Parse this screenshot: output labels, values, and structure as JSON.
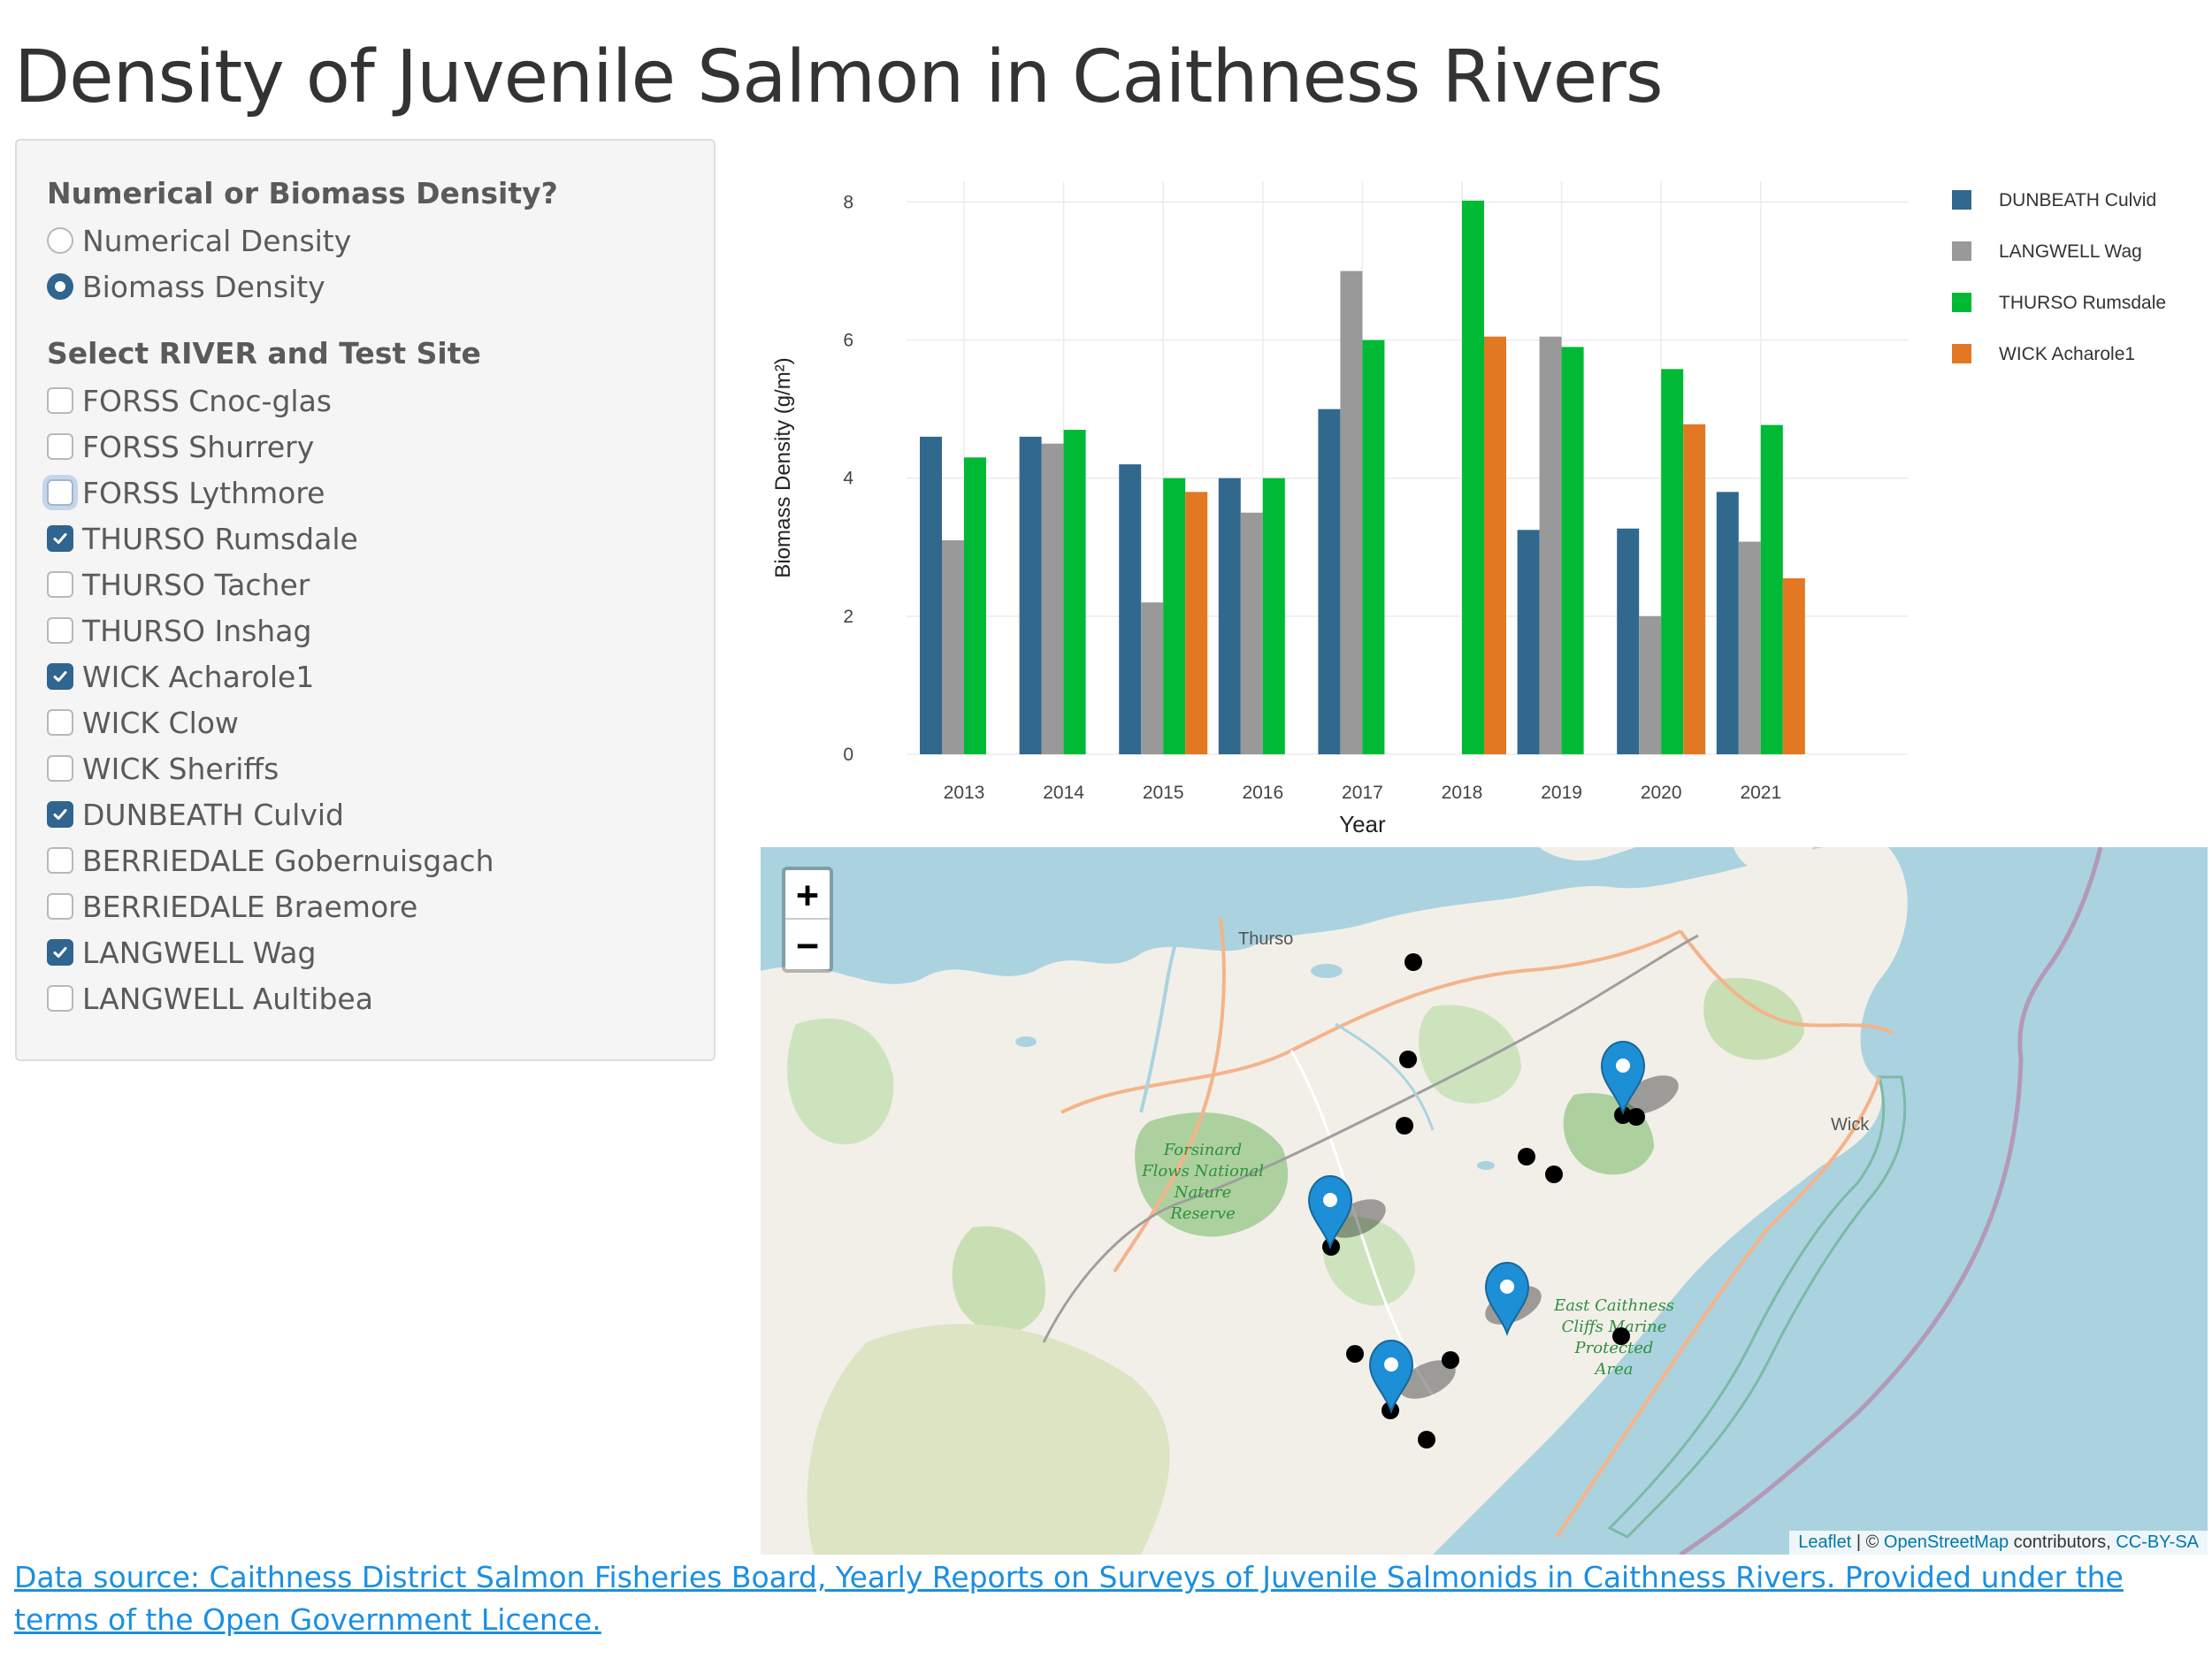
{
  "title": "Density of Juvenile Salmon in Caithness Rivers",
  "controls": {
    "density_label": "Numerical or Biomass Density?",
    "density_options": [
      {
        "label": "Numerical Density",
        "selected": false
      },
      {
        "label": "Biomass Density",
        "selected": true
      }
    ],
    "site_label": "Select RIVER and Test Site",
    "sites": [
      {
        "label": "FORSS Cnoc-glas",
        "checked": false
      },
      {
        "label": "FORSS Shurrery",
        "checked": false
      },
      {
        "label": "FORSS Lythmore",
        "checked": false,
        "focused": true
      },
      {
        "label": "THURSO Rumsdale",
        "checked": true
      },
      {
        "label": "THURSO Tacher",
        "checked": false
      },
      {
        "label": "THURSO Inshag",
        "checked": false
      },
      {
        "label": "WICK Acharole1",
        "checked": true
      },
      {
        "label": "WICK Clow",
        "checked": false
      },
      {
        "label": "WICK Sheriffs",
        "checked": false
      },
      {
        "label": "DUNBEATH Culvid",
        "checked": true
      },
      {
        "label": "BERRIEDALE Gobernuisgach",
        "checked": false
      },
      {
        "label": "BERRIEDALE Braemore",
        "checked": false
      },
      {
        "label": "LANGWELL Wag",
        "checked": true
      },
      {
        "label": "LANGWELL Aultibea",
        "checked": false
      }
    ]
  },
  "chart_data": {
    "type": "bar",
    "xlabel": "Year",
    "ylabel": "Biomass Density (g/m²)",
    "ylim": [
      0,
      8.3
    ],
    "yticks": [
      0,
      2,
      4,
      6,
      8
    ],
    "categories": [
      "2013",
      "2014",
      "2015",
      "2016",
      "2017",
      "2018",
      "2019",
      "2020",
      "2021"
    ],
    "grid": true,
    "legend_position": "right",
    "series": [
      {
        "name": "DUNBEATH Culvid",
        "color": "#31688e",
        "values": [
          4.6,
          4.6,
          4.2,
          4.0,
          5.0,
          null,
          3.25,
          3.27,
          3.8
        ]
      },
      {
        "name": "LANGWELL Wag",
        "color": "#999999",
        "values": [
          3.1,
          4.5,
          2.2,
          3.5,
          7.0,
          null,
          6.05,
          2.0,
          3.08
        ]
      },
      {
        "name": "THURSO Rumsdale",
        "color": "#00b935",
        "values": [
          4.3,
          4.7,
          4.0,
          4.0,
          6.0,
          8.02,
          5.9,
          5.58,
          4.77
        ]
      },
      {
        "name": "WICK Acharole1",
        "color": "#e37823",
        "values": [
          null,
          null,
          3.8,
          null,
          null,
          6.05,
          null,
          4.78,
          2.55
        ]
      }
    ]
  },
  "map": {
    "zoom_in": "+",
    "zoom_out": "−",
    "places": {
      "thurso": "Thurso",
      "wick": "Wick",
      "reserve": [
        "Forsinard",
        "Flows National",
        "Nature",
        "Reserve"
      ],
      "mpa": [
        "East Caithness",
        "Cliffs Marine",
        "Protected",
        "Area"
      ]
    },
    "attribution": {
      "leaflet": "Leaflet",
      "sep": " | © ",
      "osm": "OpenStreetMap",
      "contrib": " contributors, ",
      "license": "CC-BY-SA"
    },
    "marker_color": "#1d8fd6",
    "water_color": "#aad3df",
    "land_color": "#f2efe9"
  },
  "footer": {
    "source": "Data source: Caithness District Salmon Fisheries Board, Yearly Reports on Surveys of Juvenile Salmonids in Caithness Rivers. Provided under the terms of the Open Government Licence."
  }
}
